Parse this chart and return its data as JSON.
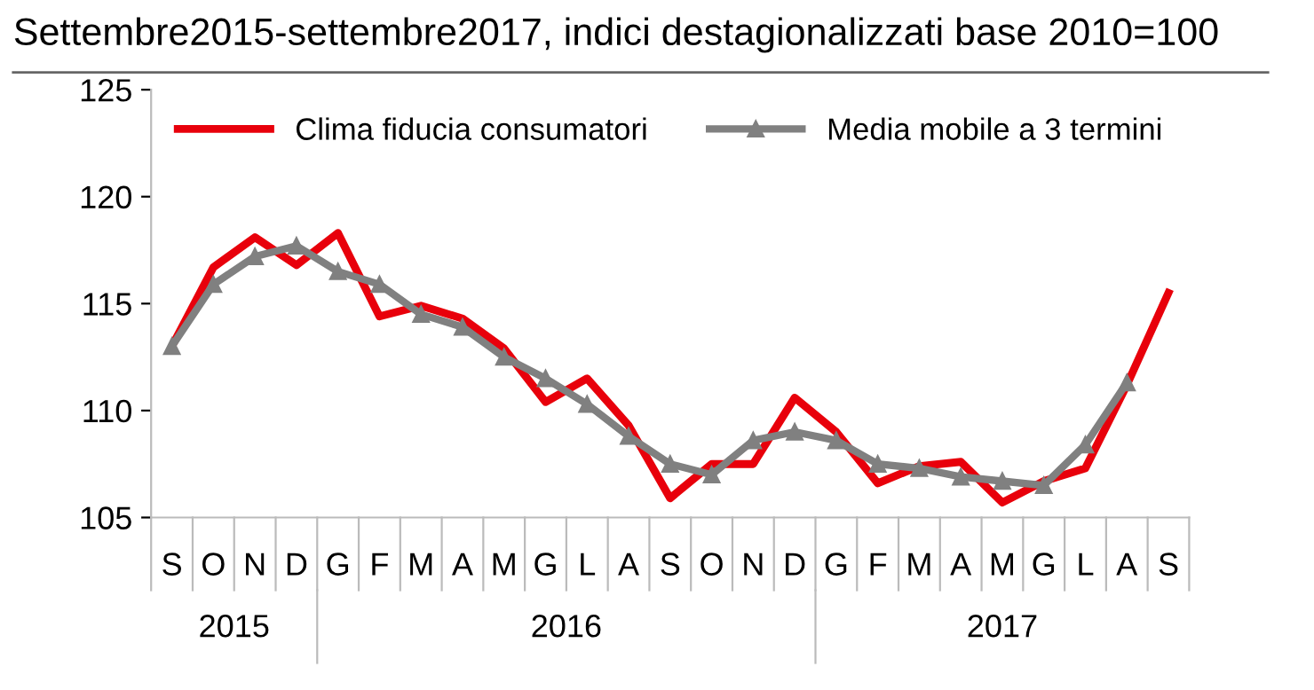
{
  "chart_data": {
    "type": "line",
    "title": "Settembre2015-settembre2017, indici destagionalizzati base 2010=100",
    "categories": [
      "S",
      "O",
      "N",
      "D",
      "G",
      "F",
      "M",
      "A",
      "M",
      "G",
      "L",
      "A",
      "S",
      "O",
      "N",
      "D",
      "G",
      "F",
      "M",
      "A",
      "M",
      "G",
      "L",
      "A",
      "S"
    ],
    "series": [
      {
        "name": "Clima fiducia consumatori",
        "color": "#e8000b",
        "marker": "none",
        "values": [
          113.0,
          116.7,
          118.1,
          116.8,
          118.3,
          114.4,
          114.9,
          114.3,
          112.9,
          110.4,
          111.5,
          109.3,
          105.9,
          107.5,
          107.5,
          110.6,
          109.0,
          106.6,
          107.4,
          107.6,
          105.7,
          106.7,
          107.3,
          111.2,
          115.5
        ]
      },
      {
        "name": "Media mobile a 3 termini",
        "color": "#808080",
        "marker": "triangle",
        "values": [
          113.0,
          115.9,
          117.2,
          117.7,
          116.5,
          115.9,
          114.5,
          113.9,
          112.5,
          111.5,
          110.3,
          108.8,
          107.5,
          107.0,
          108.6,
          109.0,
          108.6,
          107.5,
          107.3,
          106.9,
          106.7,
          106.5,
          108.4,
          111.3,
          null
        ]
      }
    ],
    "ylim": [
      105,
      125
    ],
    "yticks": [
      105,
      110,
      115,
      120,
      125
    ],
    "grid": false,
    "legend": "top",
    "line_style": "solid",
    "annotations": [
      "2015",
      "2016",
      "2017"
    ]
  }
}
